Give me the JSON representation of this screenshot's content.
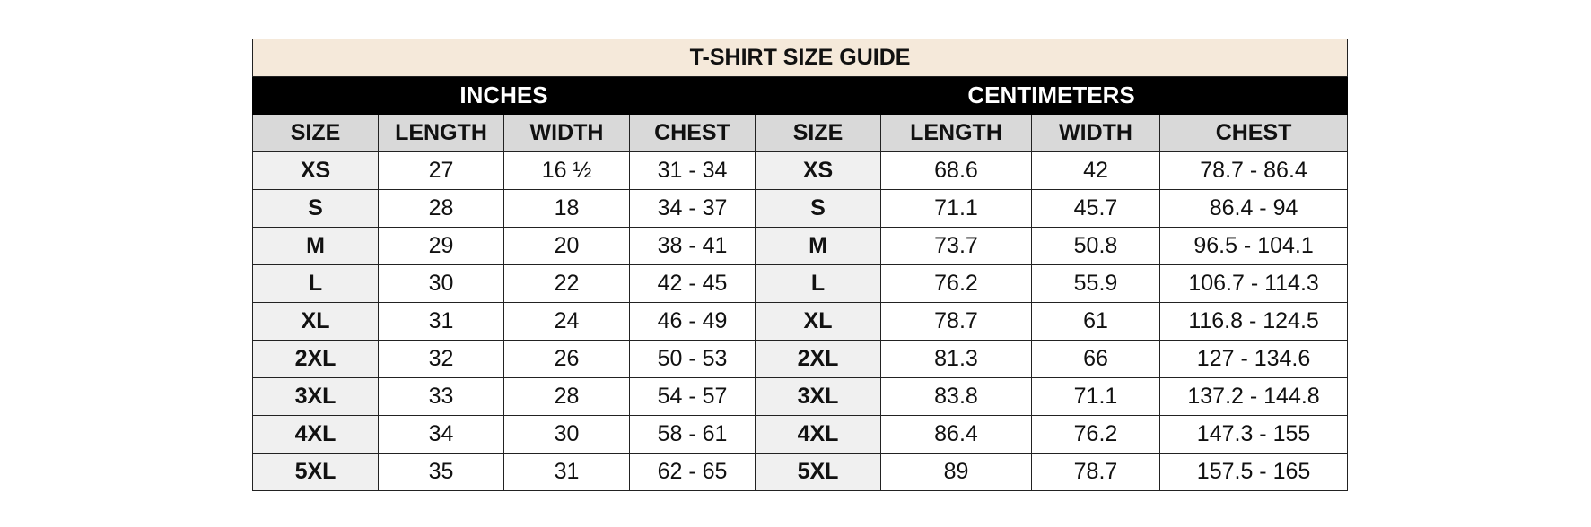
{
  "title": "T-SHIRT SIZE GUIDE",
  "groups": [
    "INCHES",
    "CENTIMETERS"
  ],
  "columns": [
    "SIZE",
    "LENGTH",
    "WIDTH",
    "CHEST",
    "SIZE",
    "LENGTH",
    "WIDTH",
    "CHEST"
  ],
  "rows": [
    [
      "XS",
      "27",
      "16 ½",
      "31 - 34",
      "XS",
      "68.6",
      "42",
      "78.7 - 86.4"
    ],
    [
      "S",
      "28",
      "18",
      "34 - 37",
      "S",
      "71.1",
      "45.7",
      "86.4 - 94"
    ],
    [
      "M",
      "29",
      "20",
      "38 - 41",
      "M",
      "73.7",
      "50.8",
      "96.5 - 104.1"
    ],
    [
      "L",
      "30",
      "22",
      "42 - 45",
      "L",
      "76.2",
      "55.9",
      "106.7 - 114.3"
    ],
    [
      "XL",
      "31",
      "24",
      "46 - 49",
      "XL",
      "78.7",
      "61",
      "116.8 - 124.5"
    ],
    [
      "2XL",
      "32",
      "26",
      "50 - 53",
      "2XL",
      "81.3",
      "66",
      "127 - 134.6"
    ],
    [
      "3XL",
      "33",
      "28",
      "54 - 57",
      "3XL",
      "83.8",
      "71.1",
      "137.2 - 144.8"
    ],
    [
      "4XL",
      "34",
      "30",
      "58 - 61",
      "4XL",
      "86.4",
      "76.2",
      "147.3 - 155"
    ],
    [
      "5XL",
      "35",
      "31",
      "62 - 65",
      "5XL",
      "89",
      "78.7",
      "157.5 - 165"
    ]
  ]
}
